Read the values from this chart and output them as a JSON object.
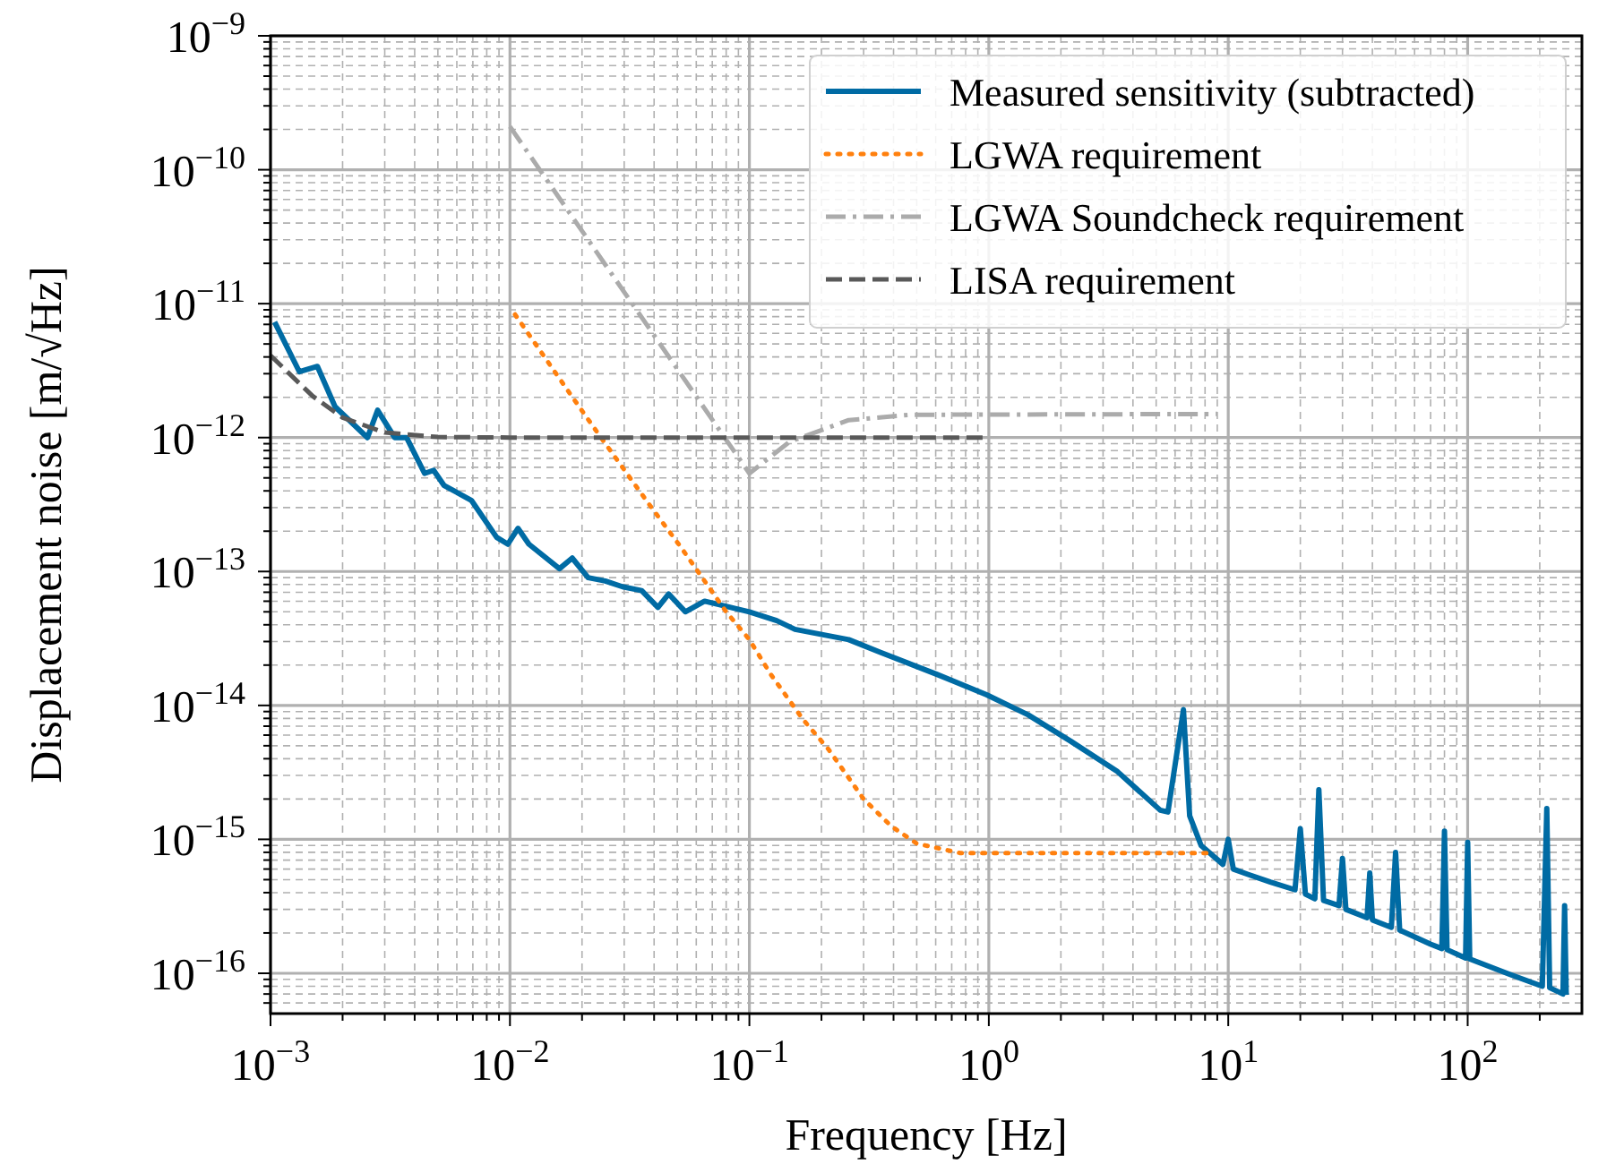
{
  "chart_data": {
    "type": "line",
    "xlabel": "Frequency [Hz]",
    "ylabel": "Displacement noise [m/√Hz]",
    "log": "xy",
    "grid": true,
    "legend": "top right",
    "xlim": [
      0.001,
      300
    ],
    "ylim": [
      5e-17,
      1e-09
    ],
    "xticks": [
      {
        "value": 0.001,
        "label": "10$^{−3}$"
      },
      {
        "value": 0.002,
        "label": null
      },
      {
        "value": 0.003,
        "label": null
      },
      {
        "value": 0.004,
        "label": null
      },
      {
        "value": 0.005,
        "label": null
      },
      {
        "value": 0.006,
        "label": null
      },
      {
        "value": 0.007,
        "label": null
      },
      {
        "value": 0.008,
        "label": null
      },
      {
        "value": 0.009,
        "label": null
      },
      {
        "value": 0.01,
        "label": "10$^{−2}$"
      },
      {
        "value": 0.02,
        "label": null
      },
      {
        "value": 0.03,
        "label": null
      },
      {
        "value": 0.04,
        "label": null
      },
      {
        "value": 0.05,
        "label": null
      },
      {
        "value": 0.06,
        "label": null
      },
      {
        "value": 0.07,
        "label": null
      },
      {
        "value": 0.08,
        "label": null
      },
      {
        "value": 0.09,
        "label": null
      },
      {
        "value": 0.1,
        "label": "10$^{−1}$"
      },
      {
        "value": 0.2,
        "label": null
      },
      {
        "value": 0.3,
        "label": null
      },
      {
        "value": 0.4,
        "label": null
      },
      {
        "value": 0.5,
        "label": null
      },
      {
        "value": 0.6,
        "label": null
      },
      {
        "value": 0.7,
        "label": null
      },
      {
        "value": 0.8,
        "label": null
      },
      {
        "value": 0.9,
        "label": null
      },
      {
        "value": 1,
        "label": "10$^{0}$"
      },
      {
        "value": 2,
        "label": null
      },
      {
        "value": 3,
        "label": null
      },
      {
        "value": 4,
        "label": null
      },
      {
        "value": 5,
        "label": null
      },
      {
        "value": 6,
        "label": null
      },
      {
        "value": 7,
        "label": null
      },
      {
        "value": 8,
        "label": null
      },
      {
        "value": 9,
        "label": null
      },
      {
        "value": 10,
        "label": "10$^{1}$"
      },
      {
        "value": 20,
        "label": null
      },
      {
        "value": 30,
        "label": null
      },
      {
        "value": 40,
        "label": null
      },
      {
        "value": 50,
        "label": null
      },
      {
        "value": 60,
        "label": null
      },
      {
        "value": 70,
        "label": null
      },
      {
        "value": 80,
        "label": null
      },
      {
        "value": 90,
        "label": null
      },
      {
        "value": 100,
        "label": "10$^{2}$"
      },
      {
        "value": 200,
        "label": null
      }
    ],
    "yticks": [
      {
        "value": 6e-17,
        "label": null
      },
      {
        "value": 7e-17,
        "label": null
      },
      {
        "value": 8e-17,
        "label": null
      },
      {
        "value": 9e-17,
        "label": null
      },
      {
        "value": 1e-16,
        "label": "10$^{−16}$"
      },
      {
        "value": 2e-16,
        "label": null
      },
      {
        "value": 3e-16,
        "label": null
      },
      {
        "value": 4e-16,
        "label": null
      },
      {
        "value": 5e-16,
        "label": null
      },
      {
        "value": 6e-16,
        "label": null
      },
      {
        "value": 7e-16,
        "label": null
      },
      {
        "value": 8e-16,
        "label": null
      },
      {
        "value": 9e-16,
        "label": null
      },
      {
        "value": 1e-15,
        "label": "10$^{−15}$"
      },
      {
        "value": 2e-15,
        "label": null
      },
      {
        "value": 3e-15,
        "label": null
      },
      {
        "value": 4e-15,
        "label": null
      },
      {
        "value": 5e-15,
        "label": null
      },
      {
        "value": 6e-15,
        "label": null
      },
      {
        "value": 7e-15,
        "label": null
      },
      {
        "value": 8e-15,
        "label": null
      },
      {
        "value": 9e-15,
        "label": null
      },
      {
        "value": 1e-14,
        "label": "10$^{−14}$"
      },
      {
        "value": 2e-14,
        "label": null
      },
      {
        "value": 3e-14,
        "label": null
      },
      {
        "value": 4e-14,
        "label": null
      },
      {
        "value": 5e-14,
        "label": null
      },
      {
        "value": 6e-14,
        "label": null
      },
      {
        "value": 7e-14,
        "label": null
      },
      {
        "value": 8e-14,
        "label": null
      },
      {
        "value": 9e-14,
        "label": null
      },
      {
        "value": 1e-13,
        "label": "10$^{−13}$"
      },
      {
        "value": 2e-13,
        "label": null
      },
      {
        "value": 3e-13,
        "label": null
      },
      {
        "value": 4e-13,
        "label": null
      },
      {
        "value": 5e-13,
        "label": null
      },
      {
        "value": 6e-13,
        "label": null
      },
      {
        "value": 7e-13,
        "label": null
      },
      {
        "value": 8e-13,
        "label": null
      },
      {
        "value": 9e-13,
        "label": null
      },
      {
        "value": 1e-12,
        "label": "10$^{−12}$"
      },
      {
        "value": 2e-12,
        "label": null
      },
      {
        "value": 3e-12,
        "label": null
      },
      {
        "value": 4e-12,
        "label": null
      },
      {
        "value": 5e-12,
        "label": null
      },
      {
        "value": 6e-12,
        "label": null
      },
      {
        "value": 7e-12,
        "label": null
      },
      {
        "value": 8e-12,
        "label": null
      },
      {
        "value": 9e-12,
        "label": null
      },
      {
        "value": 1e-11,
        "label": "10$^{−11}$"
      },
      {
        "value": 2e-11,
        "label": null
      },
      {
        "value": 3e-11,
        "label": null
      },
      {
        "value": 4e-11,
        "label": null
      },
      {
        "value": 5e-11,
        "label": null
      },
      {
        "value": 6e-11,
        "label": null
      },
      {
        "value": 7e-11,
        "label": null
      },
      {
        "value": 8e-11,
        "label": null
      },
      {
        "value": 9e-11,
        "label": null
      },
      {
        "value": 1e-10,
        "label": "10$^{−10}$"
      },
      {
        "value": 2e-10,
        "label": null
      },
      {
        "value": 3e-10,
        "label": null
      },
      {
        "value": 4e-10,
        "label": null
      },
      {
        "value": 5e-10,
        "label": null
      },
      {
        "value": 6e-10,
        "label": null
      },
      {
        "value": 7e-10,
        "label": null
      },
      {
        "value": 8e-10,
        "label": null
      },
      {
        "value": 9e-10,
        "label": null
      },
      {
        "value": 1e-09,
        "label": "10$^{−9}$"
      }
    ],
    "series": [
      {
        "name": "Measured sensitivity (subtracted)",
        "color": "#006ba4",
        "line_style": "solid",
        "x": [
          0.00104,
          0.00132,
          0.00157,
          0.00186,
          0.00254,
          0.0028,
          0.0033,
          0.0037,
          0.0044,
          0.0048,
          0.0053,
          0.0069,
          0.0088,
          0.0098,
          0.0108,
          0.012,
          0.0161,
          0.0182,
          0.0212,
          0.025,
          0.0295,
          0.0355,
          0.0415,
          0.046,
          0.054,
          0.065,
          0.1,
          0.13,
          0.155,
          0.26,
          0.35,
          0.61,
          0.98,
          1.46,
          2.2,
          3.45,
          5.2,
          5.6,
          6.5,
          6.9,
          7.7,
          9.5,
          10,
          10.5,
          12,
          15,
          19,
          20,
          21,
          23,
          23.9,
          25,
          29,
          30,
          31,
          38,
          39,
          40,
          48,
          50,
          52,
          70,
          78,
          80,
          82,
          98,
          100,
          102,
          150,
          205,
          214,
          220,
          250,
          254,
          258
        ],
        "values": [
          7.3e-12,
          3.1e-12,
          3.4e-12,
          1.7e-12,
          1e-12,
          1.6e-12,
          1e-12,
          1e-12,
          5.4e-13,
          5.7e-13,
          4.4e-13,
          3.4e-13,
          1.8e-13,
          1.6e-13,
          2.1e-13,
          1.6e-13,
          1.05e-13,
          1.26e-13,
          9e-14,
          8.5e-14,
          7.7e-14,
          7.2e-14,
          5.4e-14,
          6.8e-14,
          5e-14,
          6e-14,
          5e-14,
          4.3e-14,
          3.7e-14,
          3.1e-14,
          2.5e-14,
          1.7e-14,
          1.2e-14,
          8.5e-15,
          5.4e-15,
          3.2e-15,
          1.65e-15,
          1.6e-15,
          9.3e-15,
          1.5e-15,
          9e-16,
          6.5e-16,
          1e-15,
          6e-16,
          5.5e-16,
          4.8e-16,
          4.2e-16,
          1.2e-15,
          3.9e-16,
          3.6e-16,
          2.35e-15,
          3.5e-16,
          3.2e-16,
          7.2e-16,
          3e-16,
          2.6e-16,
          5.6e-16,
          2.5e-16,
          2.2e-16,
          8e-16,
          2.1e-16,
          1.65e-16,
          1.53e-16,
          1.15e-15,
          1.5e-16,
          1.3e-16,
          9.5e-16,
          1.28e-16,
          9.8e-17,
          8e-17,
          1.7e-15,
          7.8e-17,
          7e-17,
          3.2e-16,
          6.9e-17
        ]
      },
      {
        "name": "LGWA requirement",
        "color": "#ff800e",
        "line_style": "dotted",
        "x": [
          0.0105,
          0.0179,
          0.024,
          0.038,
          0.052,
          0.08,
          0.1,
          0.123,
          0.168,
          0.214,
          0.3,
          0.39,
          0.5,
          0.76,
          8.5
        ],
        "values": [
          8.3e-12,
          2.1e-12,
          1e-12,
          3.2e-13,
          1.5e-13,
          5e-14,
          3.1e-14,
          1.7e-14,
          7.8e-15,
          4.7e-15,
          2e-15,
          1.26e-15,
          9.3e-16,
          7.9e-16,
          7.9e-16
        ]
      },
      {
        "name": "LGWA Soundcheck requirement",
        "color": "#ababab",
        "line_style": "dashdot",
        "x": [
          0.01,
          0.1,
          0.147,
          0.26,
          0.47,
          9
        ],
        "values": [
          2.1e-10,
          5.4e-13,
          9.3e-13,
          1.35e-12,
          1.48e-12,
          1.5e-12
        ]
      },
      {
        "name": "LISA requirement",
        "color": "#595959",
        "line_style": "dashed",
        "x": [
          0.001,
          0.0015,
          0.002,
          0.003,
          0.005,
          0.01,
          1
        ],
        "values": [
          4.1e-12,
          2.04e-12,
          1.41e-12,
          1.09e-12,
          1.01e-12,
          1e-12,
          1e-12
        ]
      }
    ]
  }
}
